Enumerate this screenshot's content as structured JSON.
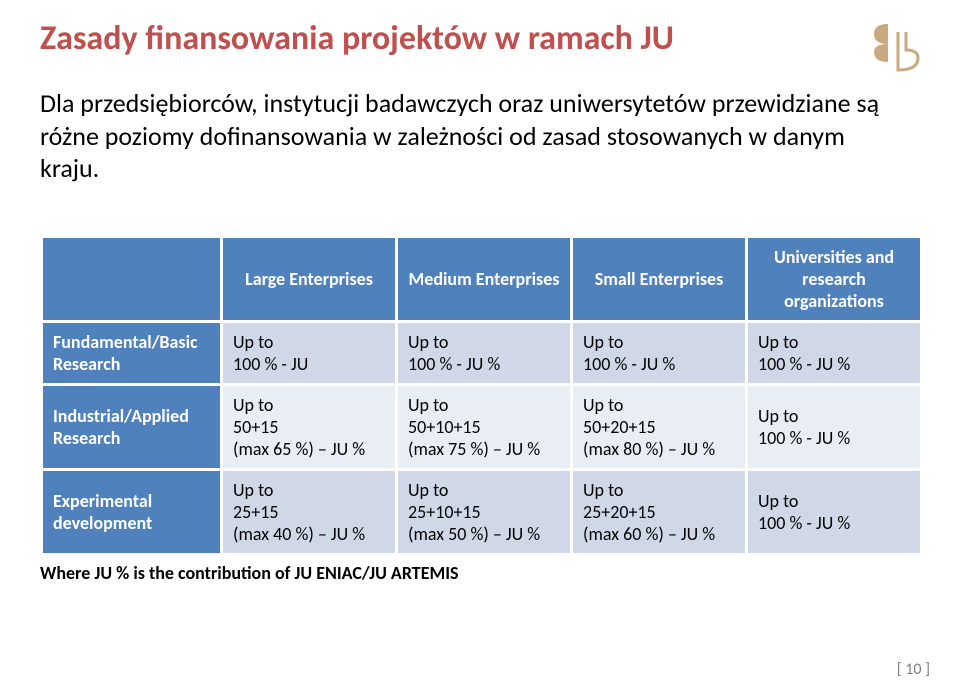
{
  "title": "Zasady finansowania projektów w ramach JU",
  "intro": "Dla przedsiębiorców, instytucji badawczych oraz  uniwersytetów przewidziane są różne poziomy dofinansowania w zależności od zasad stosowanych w danym kraju.",
  "logo_name": "br-logo",
  "table": {
    "headers": [
      "",
      "Large Enterprises",
      "Medium Enterprises",
      "Small Enterprises",
      "Universities and research organizations"
    ],
    "rows": [
      {
        "label": "Fundamental/Basic Research",
        "cells": [
          "Up to\n100 % - JU",
          "Up to\n100 % - JU %",
          "Up to\n100 % - JU %",
          "Up to\n100 % - JU %"
        ]
      },
      {
        "label": "Industrial/Applied Research",
        "cells": [
          "Up to\n50+15\n(max 65 %) – JU %",
          "Up to\n50+10+15\n(max 75 %) – JU %",
          "Up to\n50+20+15\n(max 80 %) – JU %",
          "Up to\n100 % - JU %"
        ]
      },
      {
        "label": "Experimental development",
        "cells": [
          "Up to\n25+15\n(max 40 %) – JU %",
          "Up to\n25+10+15\n(max 50 %) – JU %",
          "Up to\n25+20+15\n(max 60 %) – JU %",
          "Up to\n100 % - JU %"
        ]
      }
    ],
    "header_bg": "#4f81bd",
    "header_fg": "#ffffff",
    "cell_bg_light": "#d0d8e8",
    "cell_bg_dark": "#e9edf4",
    "border_color": "#ffffff"
  },
  "footnote": "Where JU % is the contribution of JU ENIAC/JU ARTEMIS",
  "page_number": "[ 10 ]",
  "colors": {
    "title": "#c0504d",
    "text": "#000000",
    "page_number": "#7f7f7f",
    "logo_stroke": "#c9a97e"
  }
}
